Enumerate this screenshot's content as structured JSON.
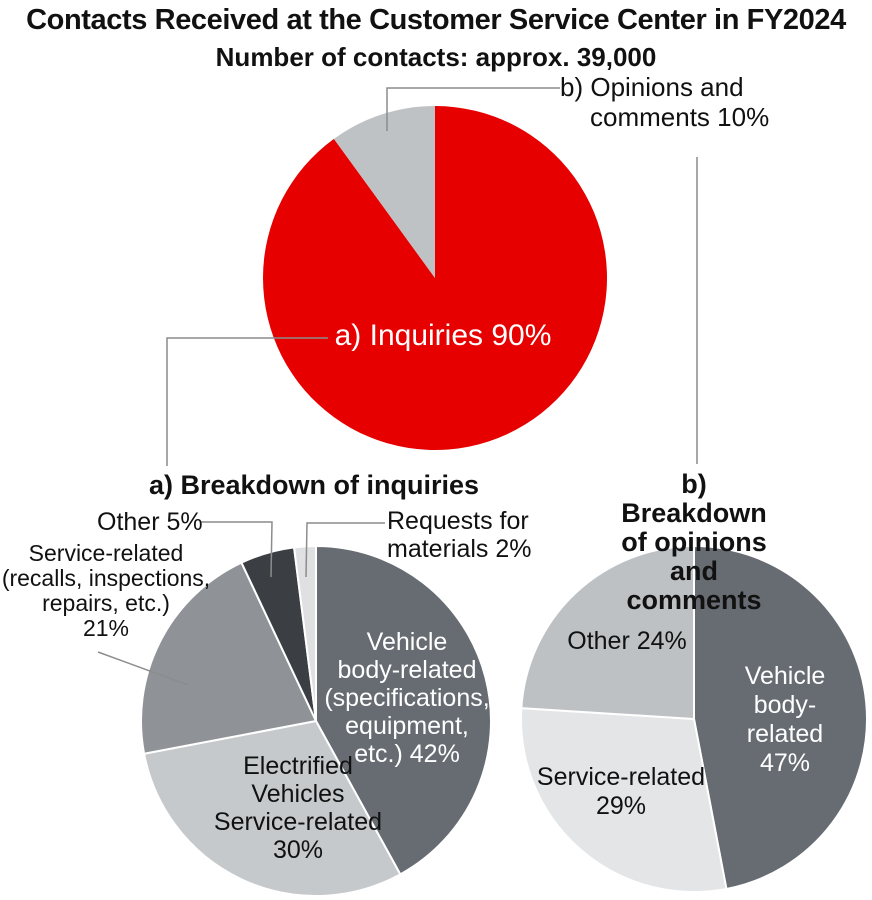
{
  "page": {
    "title": "Contacts Received at the Customer Service Center in FY2024",
    "subtitle": "Number of contacts: approx. 39,000"
  },
  "labels": {
    "inquiries": "a) Inquiries 90%",
    "opinions": "b) Opinions and\ncomments 10%",
    "heading_a": "a) Breakdown of inquiries",
    "heading_b": "b) Breakdown of opinions\nand comments",
    "a_vehicle_body": "Vehicle\nbody-related\n(specifications,\nequipment,\netc.) 42%",
    "a_electrified": "Electrified\nVehicles\nService-related\n30%",
    "a_service": "Service-related\n(recalls, inspections,\nrepairs, etc.)\n21%",
    "a_other": "Other 5%",
    "a_requests": "Requests for\nmaterials 2%",
    "b_vehicle_body": "Vehicle\nbody-related\n47%",
    "b_service": "Service-related\n29%",
    "b_other": "Other 24%"
  },
  "colors": {
    "red": "#E60000",
    "gray_opinions": "#BEC2C5",
    "slate_dark": "#666C72",
    "gray_soft": "#C6C9CB",
    "gray_mid": "#8F9397",
    "charcoal": "#3B3F43",
    "gray_pale": "#DEE0E2",
    "gray_faint": "#E3E5E6",
    "gray_other": "#BDC1C4",
    "text": "#111111",
    "leader_line": "#8C8C8C"
  },
  "chart_data": [
    {
      "id": "total-contacts",
      "type": "pie",
      "title": "Contacts Received at the Customer Service Center in FY2024",
      "subtitle": "Number of contacts: approx. 39,000",
      "start_angle": "12-oclock-clockwise",
      "slices": [
        {
          "label": "a) Inquiries",
          "value": 90,
          "color": "#E60000"
        },
        {
          "label": "b) Opinions and comments",
          "value": 10,
          "color": "#BEC2C5"
        }
      ]
    },
    {
      "id": "breakdown-of-inquiries",
      "type": "pie",
      "title": "a) Breakdown of inquiries",
      "start_angle": "12-oclock-clockwise",
      "slices": [
        {
          "label": "Vehicle body-related (specifications, equipment, etc.)",
          "value": 42,
          "color": "#666C72"
        },
        {
          "label": "Electrified Vehicles Service-related",
          "value": 30,
          "color": "#C6C9CB"
        },
        {
          "label": "Service-related (recalls, inspections, repairs, etc.)",
          "value": 21,
          "color": "#8F9397"
        },
        {
          "label": "Other",
          "value": 5,
          "color": "#3B3F43"
        },
        {
          "label": "Requests for materials",
          "value": 2,
          "color": "#DEE0E2"
        }
      ]
    },
    {
      "id": "breakdown-of-opinions-and-comments",
      "type": "pie",
      "title": "b) Breakdown of opinions and comments",
      "start_angle": "12-oclock-clockwise",
      "slices": [
        {
          "label": "Vehicle body-related",
          "value": 47,
          "color": "#666C72"
        },
        {
          "label": "Service-related",
          "value": 29,
          "color": "#E3E5E6"
        },
        {
          "label": "Other",
          "value": 24,
          "color": "#BDC1C4"
        }
      ]
    }
  ]
}
